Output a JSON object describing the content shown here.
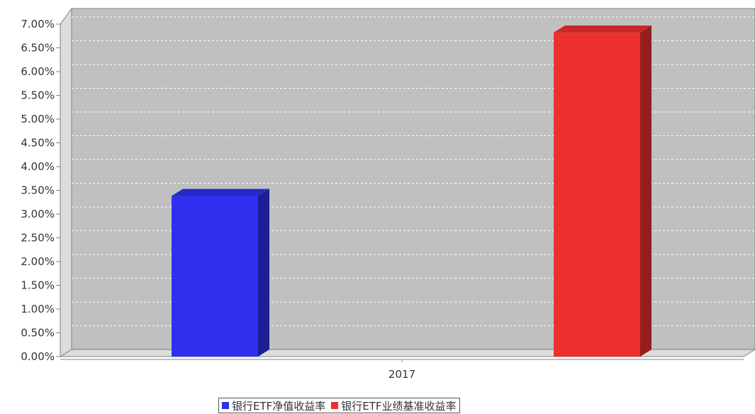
{
  "chart_data": {
    "type": "bar",
    "categories": [
      "2017"
    ],
    "series": [
      {
        "name": "银行ETF净值收益率",
        "values": [
          3.38
        ],
        "color": "#2f2fef"
      },
      {
        "name": "银行ETF业绩基准收益率",
        "values": [
          6.82
        ],
        "color": "#ee2f2f"
      }
    ],
    "y_ticks": [
      "0.00%",
      "0.50%",
      "1.00%",
      "1.50%",
      "2.00%",
      "2.50%",
      "3.00%",
      "3.50%",
      "4.00%",
      "4.50%",
      "5.00%",
      "5.50%",
      "6.00%",
      "6.50%",
      "7.00%"
    ],
    "ylim": [
      0,
      7
    ],
    "y_unit": "%",
    "grid": true,
    "legend_position": "bottom",
    "style": "3d",
    "plot_background": "#c0c0c0"
  }
}
